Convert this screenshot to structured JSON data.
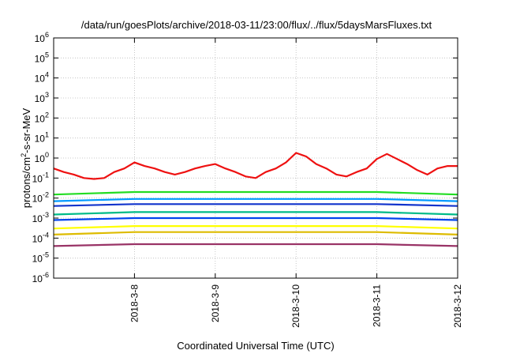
{
  "chart_data": {
    "type": "line",
    "title": "/data/run/goesPlots/archive/2018-03-11/23:00/flux/../flux/5daysMarsFluxes.txt",
    "xlabel": "Coordinated Universal Time (UTC)",
    "ylabel_prefix": "protons/cm",
    "ylabel_sup": "2",
    "ylabel_suffix": "-s-sr-MeV",
    "yscale": "log",
    "ylim": [
      1e-06,
      1000000.0
    ],
    "xlim": [
      "2018-03-07 00:00",
      "2018-03-12 00:00"
    ],
    "grid": true,
    "y_ticks": [
      {
        "value": 1e-06,
        "base": "10",
        "exp": "-6"
      },
      {
        "value": 1e-05,
        "base": "10",
        "exp": "-5"
      },
      {
        "value": 0.0001,
        "base": "10",
        "exp": "-4"
      },
      {
        "value": 0.001,
        "base": "10",
        "exp": "-3"
      },
      {
        "value": 0.01,
        "base": "10",
        "exp": "-2"
      },
      {
        "value": 0.1,
        "base": "10",
        "exp": "-1"
      },
      {
        "value": 1.0,
        "base": "10",
        "exp": "0"
      },
      {
        "value": 10.0,
        "base": "10",
        "exp": "1"
      },
      {
        "value": 100.0,
        "base": "10",
        "exp": "2"
      },
      {
        "value": 1000.0,
        "base": "10",
        "exp": "3"
      },
      {
        "value": 10000.0,
        "base": "10",
        "exp": "4"
      },
      {
        "value": 100000.0,
        "base": "10",
        "exp": "5"
      },
      {
        "value": 1000000.0,
        "base": "10",
        "exp": "6"
      }
    ],
    "x_ticks": [
      {
        "value": "2018-03-08 00:00",
        "label": "2018-3-8"
      },
      {
        "value": "2018-03-09 00:00",
        "label": "2018-3-9"
      },
      {
        "value": "2018-03-10 00:00",
        "label": "2018-3-10"
      },
      {
        "value": "2018-03-11 00:00",
        "label": "2018-3-11"
      },
      {
        "value": "2018-03-12 00:00",
        "label": "2018-3-12"
      }
    ],
    "series": [
      {
        "color": "#ee1111",
        "x": [
          "2018-03-07 00:00",
          "2018-03-07 03:00",
          "2018-03-07 06:00",
          "2018-03-07 09:00",
          "2018-03-07 12:00",
          "2018-03-07 15:00",
          "2018-03-07 18:00",
          "2018-03-07 21:00",
          "2018-03-08 00:00",
          "2018-03-08 03:00",
          "2018-03-08 06:00",
          "2018-03-08 09:00",
          "2018-03-08 12:00",
          "2018-03-08 15:00",
          "2018-03-08 18:00",
          "2018-03-08 21:00",
          "2018-03-09 00:00",
          "2018-03-09 03:00",
          "2018-03-09 06:00",
          "2018-03-09 09:00",
          "2018-03-09 12:00",
          "2018-03-09 15:00",
          "2018-03-09 18:00",
          "2018-03-09 21:00",
          "2018-03-10 00:00",
          "2018-03-10 03:00",
          "2018-03-10 06:00",
          "2018-03-10 09:00",
          "2018-03-10 12:00",
          "2018-03-10 15:00",
          "2018-03-10 18:00",
          "2018-03-10 21:00",
          "2018-03-11 00:00",
          "2018-03-11 03:00",
          "2018-03-11 06:00",
          "2018-03-11 09:00",
          "2018-03-11 12:00",
          "2018-03-11 15:00",
          "2018-03-11 18:00",
          "2018-03-11 21:00",
          "2018-03-12 00:00"
        ],
        "values": [
          0.3,
          0.2,
          0.15,
          0.1,
          0.09,
          0.1,
          0.2,
          0.3,
          0.6,
          0.4,
          0.3,
          0.2,
          0.15,
          0.2,
          0.3,
          0.4,
          0.5,
          0.3,
          0.2,
          0.12,
          0.1,
          0.2,
          0.3,
          0.6,
          1.8,
          1.2,
          0.5,
          0.3,
          0.15,
          0.12,
          0.2,
          0.3,
          0.9,
          1.6,
          0.9,
          0.5,
          0.25,
          0.15,
          0.3,
          0.4,
          0.4
        ]
      },
      {
        "color": "#22dd22",
        "x": [
          "2018-03-07 00:00",
          "2018-03-08 00:00",
          "2018-03-09 00:00",
          "2018-03-10 00:00",
          "2018-03-11 00:00",
          "2018-03-12 00:00"
        ],
        "values": [
          0.015,
          0.02,
          0.02,
          0.02,
          0.02,
          0.015
        ]
      },
      {
        "color": "#0099ff",
        "x": [
          "2018-03-07 00:00",
          "2018-03-08 00:00",
          "2018-03-09 00:00",
          "2018-03-10 00:00",
          "2018-03-11 00:00",
          "2018-03-12 00:00"
        ],
        "values": [
          0.007,
          0.009,
          0.009,
          0.009,
          0.009,
          0.007
        ]
      },
      {
        "color": "#1133cc",
        "x": [
          "2018-03-07 00:00",
          "2018-03-08 00:00",
          "2018-03-09 00:00",
          "2018-03-10 00:00",
          "2018-03-11 00:00",
          "2018-03-12 00:00"
        ],
        "values": [
          0.004,
          0.005,
          0.005,
          0.005,
          0.005,
          0.004
        ]
      },
      {
        "color": "#00bb88",
        "x": [
          "2018-03-07 00:00",
          "2018-03-08 00:00",
          "2018-03-09 00:00",
          "2018-03-10 00:00",
          "2018-03-11 00:00",
          "2018-03-12 00:00"
        ],
        "values": [
          0.0015,
          0.002,
          0.002,
          0.002,
          0.002,
          0.0015
        ]
      },
      {
        "color": "#0044ee",
        "x": [
          "2018-03-07 00:00",
          "2018-03-08 00:00",
          "2018-03-09 00:00",
          "2018-03-10 00:00",
          "2018-03-11 00:00",
          "2018-03-12 00:00"
        ],
        "values": [
          0.0008,
          0.001,
          0.001,
          0.001,
          0.001,
          0.0008
        ]
      },
      {
        "color": "#ffff00",
        "x": [
          "2018-03-07 00:00",
          "2018-03-08 00:00",
          "2018-03-09 00:00",
          "2018-03-10 00:00",
          "2018-03-11 00:00",
          "2018-03-12 00:00"
        ],
        "values": [
          0.0003,
          0.0004,
          0.0004,
          0.0004,
          0.0004,
          0.0003
        ]
      },
      {
        "color": "#ddbb00",
        "x": [
          "2018-03-07 00:00",
          "2018-03-08 00:00",
          "2018-03-09 00:00",
          "2018-03-10 00:00",
          "2018-03-11 00:00",
          "2018-03-12 00:00"
        ],
        "values": [
          0.00015,
          0.0002,
          0.0002,
          0.0002,
          0.0002,
          0.00015
        ]
      },
      {
        "color": "#993366",
        "x": [
          "2018-03-07 00:00",
          "2018-03-08 00:00",
          "2018-03-09 00:00",
          "2018-03-10 00:00",
          "2018-03-11 00:00",
          "2018-03-12 00:00"
        ],
        "values": [
          4e-05,
          5e-05,
          5e-05,
          5e-05,
          5e-05,
          4e-05
        ]
      }
    ]
  }
}
